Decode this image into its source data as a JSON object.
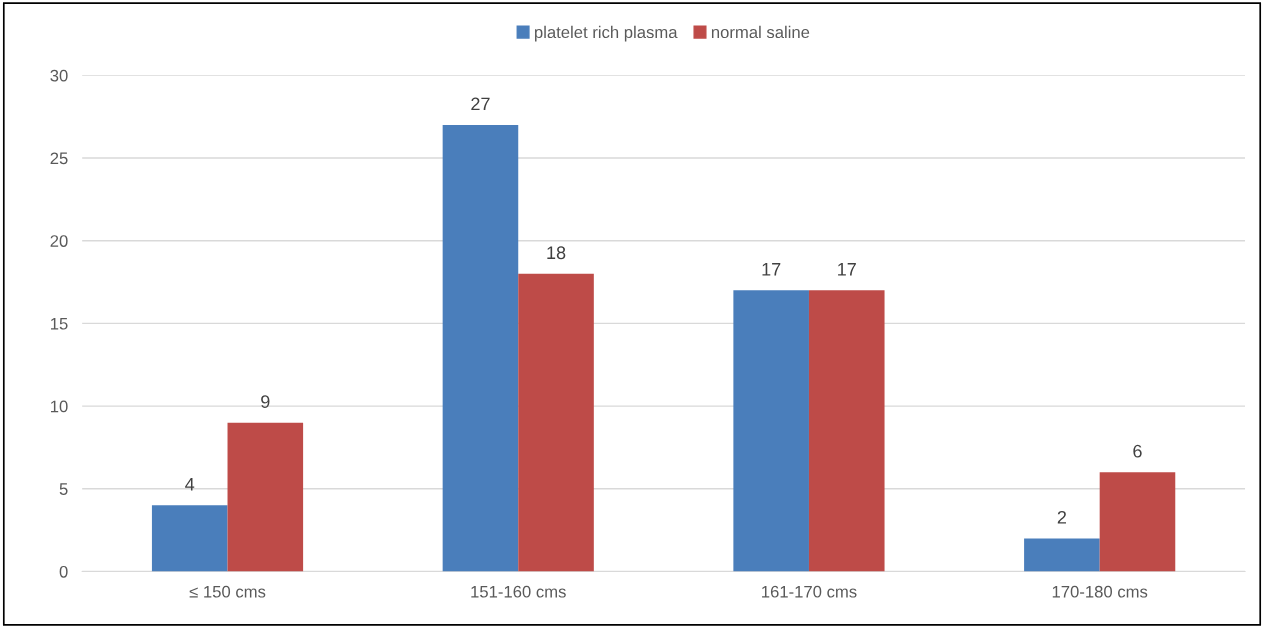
{
  "chart_data": {
    "type": "bar",
    "categories": [
      "≤ 150 cms",
      "151-160 cms",
      "161-170 cms",
      "170-180 cms"
    ],
    "series": [
      {
        "name": "platelet rich plasma",
        "color": "#4a7ebb",
        "values": [
          4,
          27,
          17,
          2
        ]
      },
      {
        "name": "normal saline",
        "color": "#be4b48",
        "values": [
          9,
          18,
          17,
          6
        ]
      }
    ],
    "ylim": [
      0,
      30
    ],
    "yticks": [
      0,
      5,
      10,
      15,
      20,
      25,
      30
    ],
    "grid": "y",
    "legend": "top",
    "data_labels": true
  }
}
